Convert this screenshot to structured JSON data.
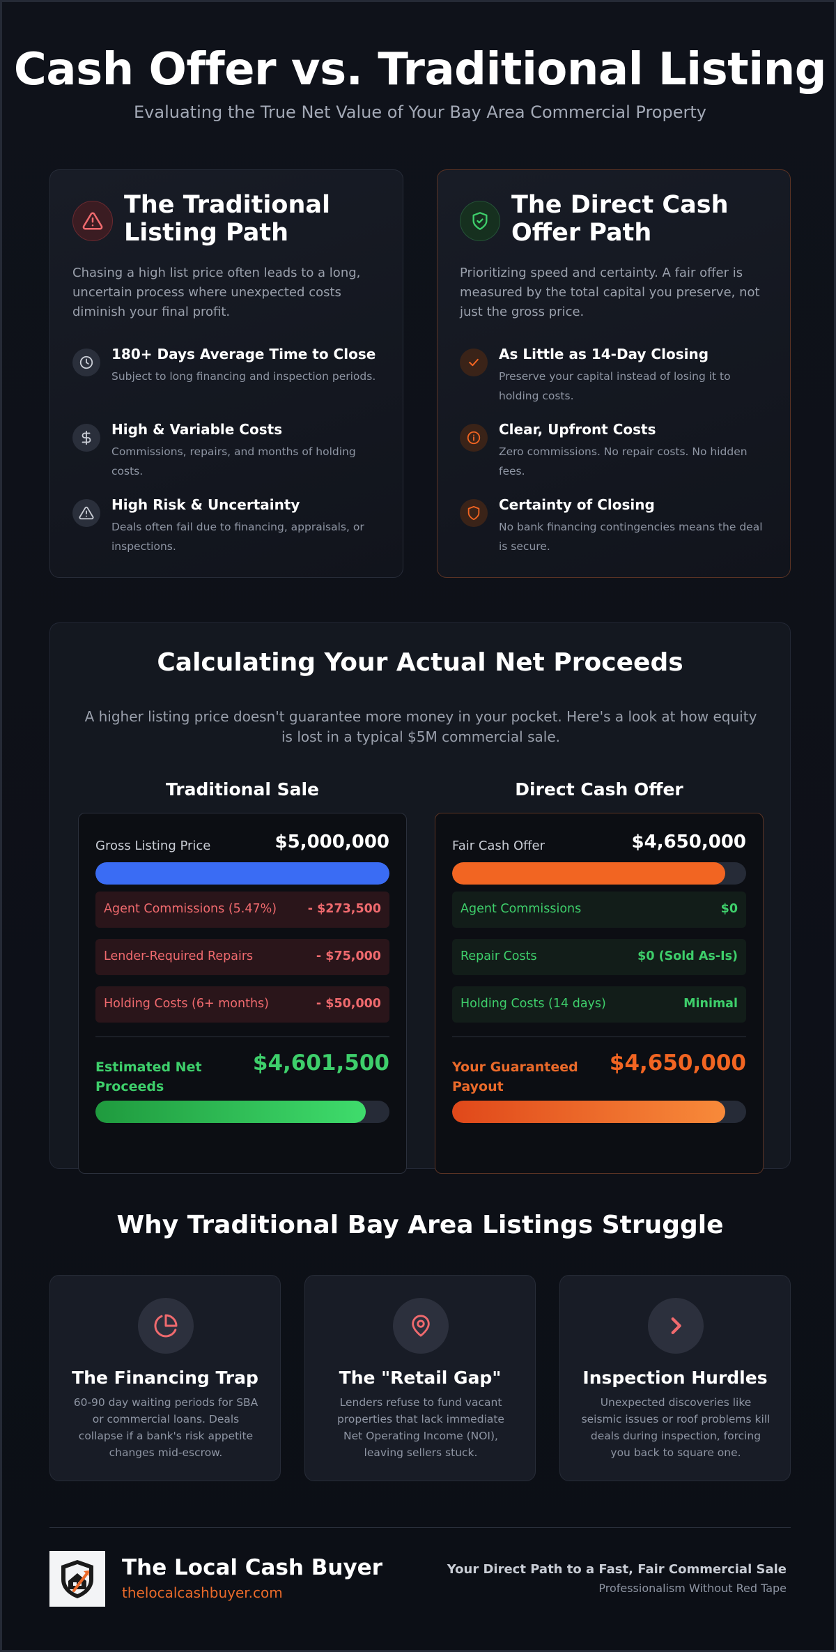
{
  "header": {
    "title": "Cash Offer vs. Traditional Listing",
    "subtitle": "Evaluating the True Net Value of Your Bay Area Commercial Property"
  },
  "colors": {
    "background": "#0e1119",
    "traditional_red": "#f06a6e",
    "cash_orange": "#f26522",
    "net_green": "#3ecf6b",
    "bar_blue": "#3a6cf4"
  },
  "traditional_path": {
    "icon": "warning-triangle-icon",
    "title": "The Traditional Listing Path",
    "description": "Chasing a high list price often leads to a long, uncertain process where unexpected costs diminish your final profit.",
    "features": [
      {
        "icon": "clock-icon",
        "title": "180+ Days Average Time to Close",
        "description": "Subject to long financing and inspection periods."
      },
      {
        "icon": "dollar-icon",
        "title": "High & Variable Costs",
        "description": "Commissions, repairs, and months of holding costs."
      },
      {
        "icon": "alert-triangle-icon",
        "title": "High Risk & Uncertainty",
        "description": "Deals often fail due to financing, appraisals, or inspections."
      }
    ]
  },
  "cash_path": {
    "icon": "shield-check-icon",
    "title": "The Direct Cash Offer Path",
    "description": "Prioritizing speed and certainty. A fair offer is measured by the total capital you preserve, not just the gross price.",
    "features": [
      {
        "icon": "check-icon",
        "title": "As Little as 14-Day Closing",
        "description": "Preserve your capital instead of losing it to holding costs."
      },
      {
        "icon": "info-icon",
        "title": "Clear, Upfront Costs",
        "description": "Zero commissions. No repair costs. No hidden fees."
      },
      {
        "icon": "shield-icon",
        "title": "Certainty of Closing",
        "description": "No bank financing contingencies means the deal is secure."
      }
    ]
  },
  "net_proceeds": {
    "title": "Calculating Your Actual Net Proceeds",
    "description": "A higher listing price doesn't guarantee more money in your pocket. Here's a look at how equity is lost in a typical $5M commercial sale.",
    "traditional": {
      "heading": "Traditional Sale",
      "gross_label": "Gross Listing Price",
      "gross_value": "$5,000,000",
      "gross_fill": 1.0,
      "rows": [
        {
          "label": "Agent Commissions (5.47%)",
          "value": "- $273,500"
        },
        {
          "label": "Lender-Required Repairs",
          "value": "- $75,000"
        },
        {
          "label": "Holding Costs (6+ months)",
          "value": "- $50,000"
        }
      ],
      "net_label": "Estimated Net Proceeds",
      "net_value": "$4,601,500",
      "net_fill": 0.92
    },
    "cash": {
      "heading": "Direct Cash Offer",
      "gross_label": "Fair Cash Offer",
      "gross_value": "$4,650,000",
      "gross_fill": 0.93,
      "rows": [
        {
          "label": "Agent Commissions",
          "value": "$0"
        },
        {
          "label": "Repair Costs",
          "value": "$0 (Sold As-Is)"
        },
        {
          "label": "Holding Costs (14 days)",
          "value": "Minimal"
        }
      ],
      "net_label": "Your Guaranteed Payout",
      "net_value": "$4,650,000",
      "net_fill": 0.93
    }
  },
  "why": {
    "title": "Why Traditional Bay Area Listings Struggle",
    "cards": [
      {
        "icon": "pie-chart-icon",
        "title": "The Financing Trap",
        "description": "60-90 day waiting periods for SBA or commercial loans. Deals collapse if a bank's risk appetite changes mid-escrow."
      },
      {
        "icon": "map-pin-icon",
        "title": "The \"Retail Gap\"",
        "description": "Lenders refuse to fund vacant properties that lack immediate Net Operating Income (NOI), leaving sellers stuck."
      },
      {
        "icon": "chevron-right-icon",
        "title": "Inspection Hurdles",
        "description": "Unexpected discoveries like seismic issues or roof problems kill deals during inspection, forcing you back to square one."
      }
    ]
  },
  "footer": {
    "brand_name": "The Local Cash Buyer",
    "brand_url": "thelocalcashbuyer.com",
    "tagline": "Your Direct Path to a Fast, Fair Commercial Sale",
    "tagline_sub": "Professionalism Without Red Tape"
  }
}
